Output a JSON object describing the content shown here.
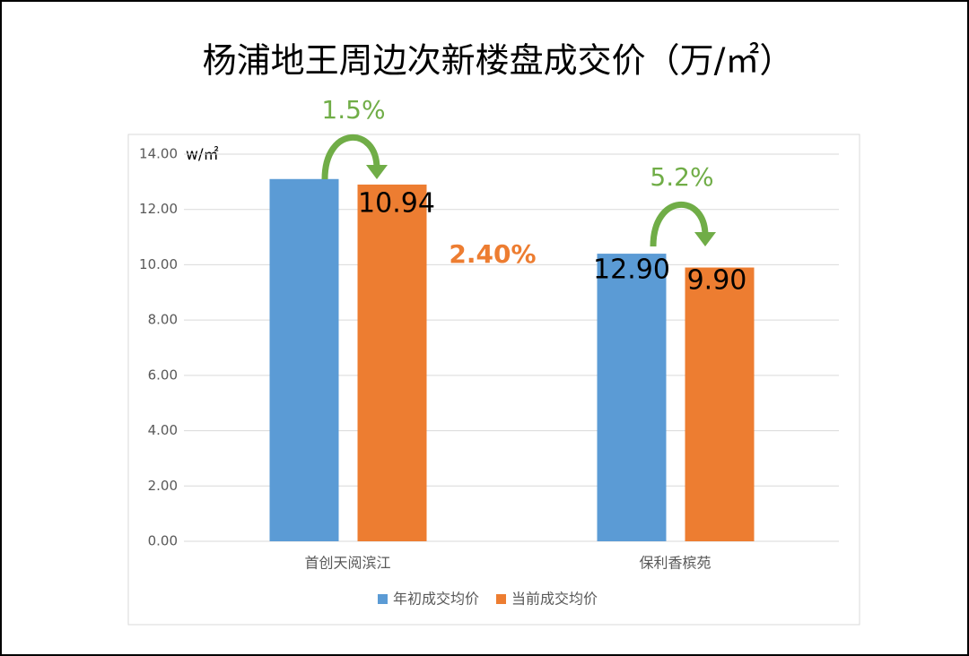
{
  "chart_data": {
    "type": "bar",
    "title": "杨浦地王周边次新楼盘成交价（万/㎡）",
    "y_unit": "w/㎡",
    "categories": [
      "首创天阅滨江",
      "保利香槟苑"
    ],
    "series": [
      {
        "name": "年初成交均价",
        "color": "#5b9bd5",
        "values": [
          13.1,
          10.4
        ]
      },
      {
        "name": "当前成交均价",
        "color": "#ed7d31",
        "values": [
          12.9,
          9.9
        ]
      }
    ],
    "annotations": [
      {
        "text": "1.5%",
        "color": "#70ad47"
      },
      {
        "text": "10.94",
        "color": "#000000"
      },
      {
        "text": "2.40%",
        "color": "#ed7d31"
      },
      {
        "text": "5.2%",
        "color": "#70ad47"
      },
      {
        "text": "12.90",
        "color": "#000000"
      },
      {
        "text": "9.90",
        "color": "#000000"
      }
    ],
    "ylim": [
      0,
      14
    ],
    "yticks": [
      {
        "value": 0,
        "label": "0.00"
      },
      {
        "value": 2,
        "label": "2.00"
      },
      {
        "value": 4,
        "label": "4.00"
      },
      {
        "value": 6,
        "label": "6.00"
      },
      {
        "value": 8,
        "label": "8.00"
      },
      {
        "value": 10,
        "label": "10.00"
      },
      {
        "value": 12,
        "label": "12.00"
      },
      {
        "value": 14,
        "label": "14.00"
      }
    ],
    "grid": true,
    "legend": "bottom"
  }
}
